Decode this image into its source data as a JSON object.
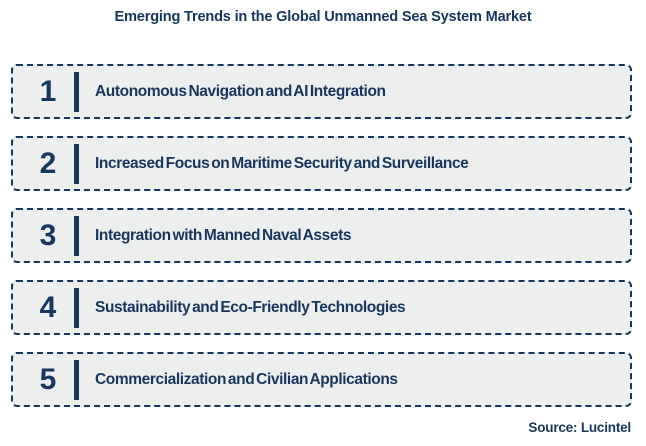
{
  "title": "Emerging Trends in the Global Unmanned Sea System Market",
  "trends": [
    {
      "number": "1",
      "label": "Autonomous Navigation and AI Integration"
    },
    {
      "number": "2",
      "label": "Increased Focus on Maritime Security and Surveillance"
    },
    {
      "number": "3",
      "label": "Integration with Manned Naval Assets"
    },
    {
      "number": "4",
      "label": "Sustainability and Eco-Friendly Technologies"
    },
    {
      "number": "5",
      "label": "Commercialization and Civilian Applications"
    }
  ],
  "source": "Source: Lucintel",
  "layout": {
    "box_tops": [
      64,
      136,
      208,
      280,
      352
    ]
  },
  "colors": {
    "navy": "#17365D",
    "box_background": "#EDEEEE",
    "page_background": "#FFFFFF"
  }
}
